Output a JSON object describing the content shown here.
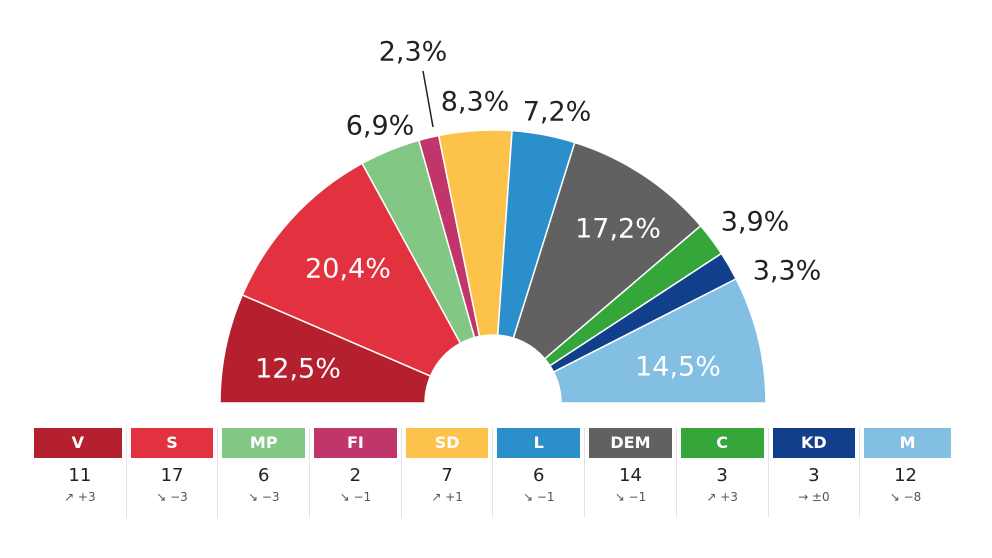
{
  "chart_data": {
    "type": "pie",
    "subtype": "semicircle-donut",
    "start_angle_deg": 180,
    "end_angle_deg": 0,
    "slices": [
      {
        "party": "V",
        "label": "12,5%",
        "value": 12.5,
        "color": "#b5202f"
      },
      {
        "party": "S",
        "label": "20,4%",
        "value": 20.4,
        "color": "#e3323f"
      },
      {
        "party": "MP",
        "label": "6,9%",
        "value": 6.9,
        "color": "#83c784"
      },
      {
        "party": "FI",
        "label": "2,3%",
        "value": 2.3,
        "color": "#c0356a"
      },
      {
        "party": "SD",
        "label": "8,3%",
        "value": 8.3,
        "color": "#fdc24a"
      },
      {
        "party": "L",
        "label": "7,2%",
        "value": 7.2,
        "color": "#2b8fcc"
      },
      {
        "party": "DEM",
        "label": "17,2%",
        "value": 17.2,
        "color": "#616161"
      },
      {
        "party": "C",
        "label": "3,9%",
        "value": 3.9,
        "color": "#35a73a"
      },
      {
        "party": "KD",
        "label": "3,3%",
        "value": 3.3,
        "color": "#123f8c"
      },
      {
        "party": "M",
        "label": "14,5%",
        "value": 14.5,
        "color": "#82bfe3"
      }
    ]
  },
  "parties": [
    {
      "abbr": "V",
      "seats": "11",
      "change": "↗ +3",
      "color": "#b5202f"
    },
    {
      "abbr": "S",
      "seats": "17",
      "change": "↘ −3",
      "color": "#e3323f"
    },
    {
      "abbr": "MP",
      "seats": "6",
      "change": "↘ −3",
      "color": "#83c784"
    },
    {
      "abbr": "FI",
      "seats": "2",
      "change": "↘ −1",
      "color": "#c0356a"
    },
    {
      "abbr": "SD",
      "seats": "7",
      "change": "↗ +1",
      "color": "#fdc24a"
    },
    {
      "abbr": "L",
      "seats": "6",
      "change": "↘ −1",
      "color": "#2b8fcc"
    },
    {
      "abbr": "DEM",
      "seats": "14",
      "change": "↘ −1",
      "color": "#616161"
    },
    {
      "abbr": "C",
      "seats": "3",
      "change": "↗ +3",
      "color": "#35a73a"
    },
    {
      "abbr": "KD",
      "seats": "3",
      "change": "→ ±0",
      "color": "#123f8c"
    },
    {
      "abbr": "M",
      "seats": "12",
      "change": "↘ −8",
      "color": "#82bfe3"
    }
  ]
}
